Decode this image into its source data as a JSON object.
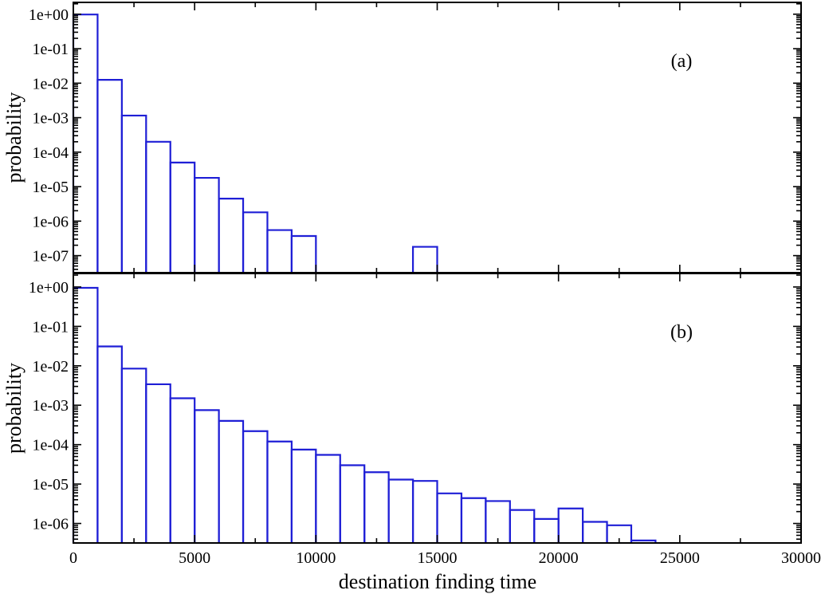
{
  "figure": {
    "xlabel": "destination finding time"
  },
  "chart_data": [
    {
      "type": "bar",
      "panel_label": "(a)",
      "ylabel": "probability",
      "yscale": "log",
      "bar_color": "#1f1fd6",
      "grid": false,
      "xlim": [
        0,
        30000
      ],
      "ylim": [
        3.2e-08,
        2.2
      ],
      "x_ticks": [
        0,
        5000,
        10000,
        15000,
        20000,
        25000,
        30000
      ],
      "y_ticks": [
        1,
        0.1,
        0.01,
        0.001,
        0.0001,
        1e-05,
        1e-06,
        1e-07
      ],
      "y_tick_labels": [
        "1e+00",
        "1e-01",
        "1e-02",
        "1e-03",
        "1e-04",
        "1e-05",
        "1e-06",
        "1e-07"
      ],
      "bin_width": 1000,
      "bins": [
        {
          "x": 0,
          "y": 0.98
        },
        {
          "x": 1000,
          "y": 0.0125
        },
        {
          "x": 2000,
          "y": 0.00115
        },
        {
          "x": 3000,
          "y": 0.0002
        },
        {
          "x": 4000,
          "y": 5e-05
        },
        {
          "x": 5000,
          "y": 1.8e-05
        },
        {
          "x": 6000,
          "y": 4.5e-06
        },
        {
          "x": 7000,
          "y": 1.8e-06
        },
        {
          "x": 8000,
          "y": 5.5e-07
        },
        {
          "x": 9000,
          "y": 3.7e-07
        },
        {
          "x": 14000,
          "y": 1.8e-07
        }
      ]
    },
    {
      "type": "bar",
      "panel_label": "(b)",
      "ylabel": "probability",
      "yscale": "log",
      "bar_color": "#1f1fd6",
      "grid": false,
      "xlim": [
        0,
        30000
      ],
      "ylim": [
        3.2e-07,
        2.2
      ],
      "x_ticks": [
        0,
        5000,
        10000,
        15000,
        20000,
        25000,
        30000
      ],
      "x_tick_labels": [
        "0",
        "5000",
        "10000",
        "15000",
        "20000",
        "25000",
        "30000"
      ],
      "y_ticks": [
        1,
        0.1,
        0.01,
        0.001,
        0.0001,
        1e-05,
        1e-06
      ],
      "y_tick_labels": [
        "1e+00",
        "1e-01",
        "1e-02",
        "1e-03",
        "1e-04",
        "1e-05",
        "1e-06"
      ],
      "bin_width": 1000,
      "bins": [
        {
          "x": 0,
          "y": 0.95
        },
        {
          "x": 1000,
          "y": 0.031
        },
        {
          "x": 2000,
          "y": 0.0085
        },
        {
          "x": 3000,
          "y": 0.0034
        },
        {
          "x": 4000,
          "y": 0.0015
        },
        {
          "x": 5000,
          "y": 0.00075
        },
        {
          "x": 6000,
          "y": 0.0004
        },
        {
          "x": 7000,
          "y": 0.00022
        },
        {
          "x": 8000,
          "y": 0.00012
        },
        {
          "x": 9000,
          "y": 7.5e-05
        },
        {
          "x": 10000,
          "y": 5.5e-05
        },
        {
          "x": 11000,
          "y": 3e-05
        },
        {
          "x": 12000,
          "y": 2e-05
        },
        {
          "x": 13000,
          "y": 1.3e-05
        },
        {
          "x": 14000,
          "y": 1.2e-05
        },
        {
          "x": 15000,
          "y": 5.8e-06
        },
        {
          "x": 16000,
          "y": 4.4e-06
        },
        {
          "x": 17000,
          "y": 3.7e-06
        },
        {
          "x": 18000,
          "y": 2.2e-06
        },
        {
          "x": 19000,
          "y": 1.3e-06
        },
        {
          "x": 20000,
          "y": 2.4e-06
        },
        {
          "x": 21000,
          "y": 1.1e-06
        },
        {
          "x": 22000,
          "y": 9e-07
        },
        {
          "x": 23000,
          "y": 3.7e-07
        }
      ]
    }
  ]
}
